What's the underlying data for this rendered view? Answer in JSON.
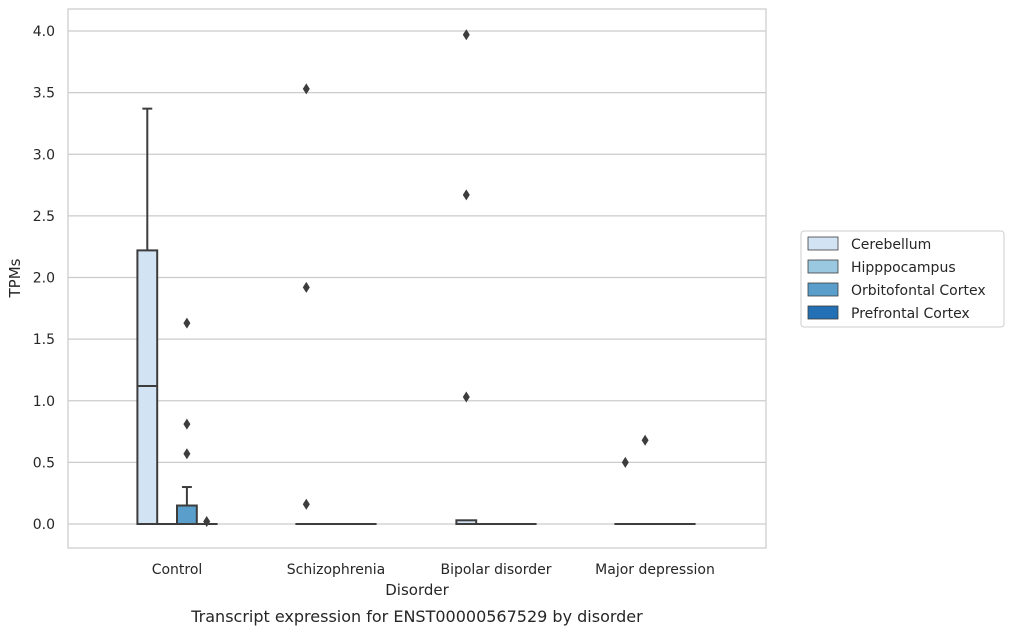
{
  "chart_data": {
    "type": "box",
    "caption": "Transcript expression for ENST00000567529 by disorder",
    "xlabel": "Disorder",
    "ylabel": "TPMs",
    "ylim": [
      -0.19,
      4.18
    ],
    "yticks": [
      "0.0",
      "0.5",
      "1.0",
      "1.5",
      "2.0",
      "2.5",
      "3.0",
      "3.5",
      "4.0"
    ],
    "grid": true,
    "legend_position": "right",
    "categories": [
      "Control",
      "Schizophrenia",
      "Bipolar disorder",
      "Major depression"
    ],
    "series": [
      {
        "name": "Cerebellum",
        "color": "#d2e3f3"
      },
      {
        "name": "Hipppocampus",
        "color": "#9ac8e0"
      },
      {
        "name": "Orbitofontal Cortex",
        "color": "#5a9fcb"
      },
      {
        "name": "Prefrontal Cortex",
        "color": "#2370b4"
      }
    ],
    "boxes": [
      [
        {
          "q1": 0.0,
          "median": 1.12,
          "q3": 2.22,
          "whisker_low": 0.0,
          "whisker_high": 3.37,
          "outliers": []
        },
        {
          "q1": 0.0,
          "median": 0.0,
          "q3": 0.0,
          "whisker_low": 0.0,
          "whisker_high": 0.0,
          "outliers": []
        },
        {
          "q1": 0.0,
          "median": 0.0,
          "q3": 0.15,
          "whisker_low": 0.0,
          "whisker_high": 0.3,
          "outliers": [
            1.63,
            0.81,
            0.57
          ]
        },
        {
          "q1": 0.0,
          "median": 0.0,
          "q3": 0.0,
          "whisker_low": 0.0,
          "whisker_high": 0.0,
          "outliers": [
            0.02
          ]
        }
      ],
      [
        {
          "q1": 0.0,
          "median": 0.0,
          "q3": 0.0,
          "whisker_low": 0.0,
          "whisker_high": 0.0,
          "outliers": [
            3.53,
            1.92,
            0.16
          ]
        },
        {
          "q1": 0.0,
          "median": 0.0,
          "q3": 0.0,
          "whisker_low": 0.0,
          "whisker_high": 0.0,
          "outliers": []
        },
        {
          "q1": 0.0,
          "median": 0.0,
          "q3": 0.0,
          "whisker_low": 0.0,
          "whisker_high": 0.0,
          "outliers": []
        },
        {
          "q1": 0.0,
          "median": 0.0,
          "q3": 0.0,
          "whisker_low": 0.0,
          "whisker_high": 0.0,
          "outliers": []
        }
      ],
      [
        {
          "q1": 0.0,
          "median": 0.0,
          "q3": 0.03,
          "whisker_low": 0.0,
          "whisker_high": 0.03,
          "outliers": [
            3.97,
            2.67,
            1.03
          ]
        },
        {
          "q1": 0.0,
          "median": 0.0,
          "q3": 0.0,
          "whisker_low": 0.0,
          "whisker_high": 0.0,
          "outliers": []
        },
        {
          "q1": 0.0,
          "median": 0.0,
          "q3": 0.0,
          "whisker_low": 0.0,
          "whisker_high": 0.0,
          "outliers": []
        },
        {
          "q1": 0.0,
          "median": 0.0,
          "q3": 0.0,
          "whisker_low": 0.0,
          "whisker_high": 0.0,
          "outliers": []
        }
      ],
      [
        {
          "q1": 0.0,
          "median": 0.0,
          "q3": 0.0,
          "whisker_low": 0.0,
          "whisker_high": 0.0,
          "outliers": [
            0.5
          ]
        },
        {
          "q1": 0.0,
          "median": 0.0,
          "q3": 0.0,
          "whisker_low": 0.0,
          "whisker_high": 0.0,
          "outliers": [
            0.68
          ]
        },
        {
          "q1": 0.0,
          "median": 0.0,
          "q3": 0.0,
          "whisker_low": 0.0,
          "whisker_high": 0.0,
          "outliers": []
        },
        {
          "q1": 0.0,
          "median": 0.0,
          "q3": 0.0,
          "whisker_low": 0.0,
          "whisker_high": 0.0,
          "outliers": []
        }
      ]
    ]
  }
}
